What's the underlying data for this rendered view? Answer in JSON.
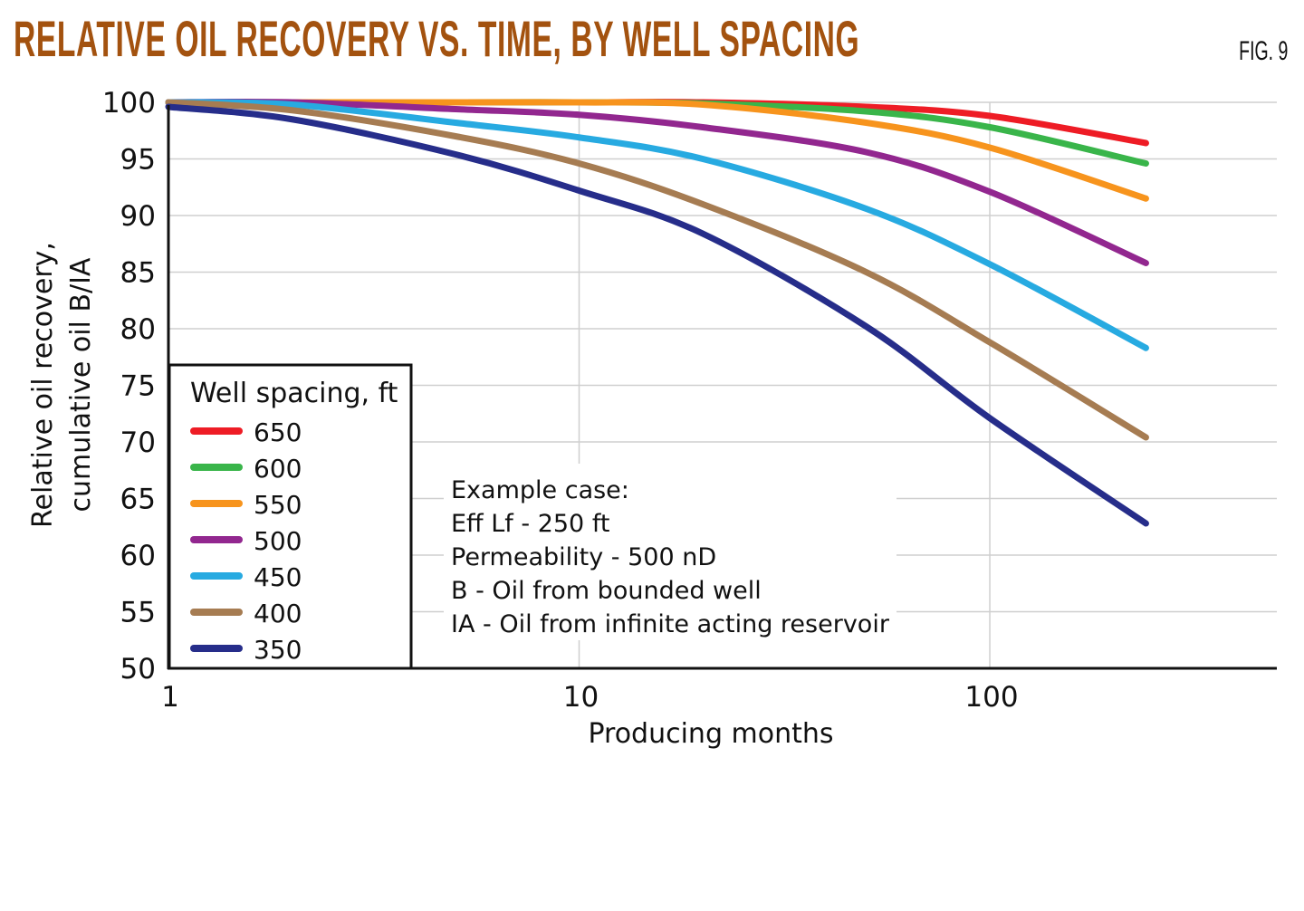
{
  "title": "RELATIVE OIL RECOVERY VS. TIME, BY WELL SPACING",
  "figure_label": "FIG. 9",
  "chart_data": {
    "type": "line",
    "xlabel": "Producing months",
    "ylabel": [
      "Relative oil recovery,",
      "cumulative oil B/IA"
    ],
    "x_scale": "log",
    "xlim": [
      1,
      500
    ],
    "ylim": [
      50,
      100
    ],
    "x_ticks": [
      1,
      10,
      100
    ],
    "x_tick_labels": [
      "1",
      "10",
      "100"
    ],
    "y_ticks": [
      50,
      55,
      60,
      65,
      70,
      75,
      80,
      85,
      90,
      95,
      100
    ],
    "y_tick_labels": [
      "50",
      "55",
      "60",
      "65",
      "70",
      "75",
      "80",
      "85",
      "90",
      "95",
      "100"
    ],
    "grid": true,
    "legend": {
      "title": "Well spacing, ft",
      "placement": "bottom-left"
    },
    "x": [
      1,
      2,
      5,
      10,
      20,
      50,
      100,
      240
    ],
    "series": [
      {
        "name": "650",
        "color": "#ee1c25",
        "values": [
          100,
          100,
          100,
          100,
          100,
          99.6,
          98.8,
          96.4
        ]
      },
      {
        "name": "600",
        "color": "#39b54a",
        "values": [
          100,
          100,
          100,
          100,
          99.9,
          99.2,
          97.8,
          94.6
        ]
      },
      {
        "name": "550",
        "color": "#f7941d",
        "values": [
          100,
          100,
          100,
          100,
          99.8,
          98.2,
          96.0,
          91.5
        ]
      },
      {
        "name": "500",
        "color": "#92278f",
        "values": [
          100,
          100,
          99.4,
          98.9,
          97.8,
          95.6,
          92.1,
          85.8
        ]
      },
      {
        "name": "450",
        "color": "#27aae1",
        "values": [
          100,
          99.8,
          98.2,
          96.9,
          95.0,
          90.6,
          85.7,
          78.3
        ]
      },
      {
        "name": "400",
        "color": "#a67c52",
        "values": [
          100,
          99.3,
          97.0,
          94.6,
          91.0,
          85.0,
          78.8,
          70.4
        ]
      },
      {
        "name": "350",
        "color": "#262d8a",
        "values": [
          99.6,
          98.5,
          95.4,
          92.2,
          88.4,
          80.2,
          72.1,
          62.8
        ]
      }
    ],
    "annotation": [
      "Example case:",
      "Eff Lf - 250 ft",
      "Permeability - 500 nD",
      "B - Oil from bounded well",
      "IA - Oil from infinite acting reservoir"
    ]
  }
}
